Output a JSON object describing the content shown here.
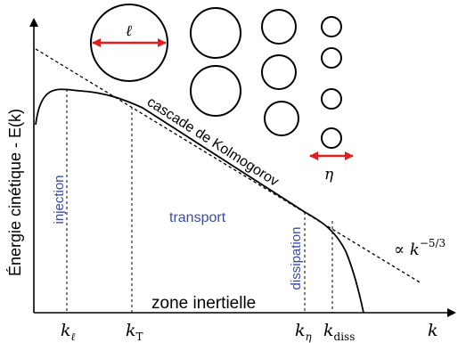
{
  "axes": {
    "y_label": "Énergie cinétique - E(k)",
    "x_label": "k"
  },
  "ticks": [
    {
      "base": "k",
      "sub": "ℓ"
    },
    {
      "base": "k",
      "sub": "T"
    },
    {
      "base": "k",
      "sub": "η"
    },
    {
      "base": "k",
      "sub": "diss"
    }
  ],
  "regions": {
    "injection": "injection",
    "transport": "transport",
    "dissipation": "dissipation",
    "inertial": "zone inertielle"
  },
  "cascade_label": "cascade de Kolmogorov",
  "power_law": {
    "prefix": "∝ ",
    "base": "k",
    "exponent": "−5/3"
  },
  "eddies": {
    "large_size_label": "ℓ",
    "small_size_label": "η"
  },
  "colors": {
    "text": "#000000",
    "region_text": "#3a4aa8",
    "arrow": "#e02020"
  }
}
